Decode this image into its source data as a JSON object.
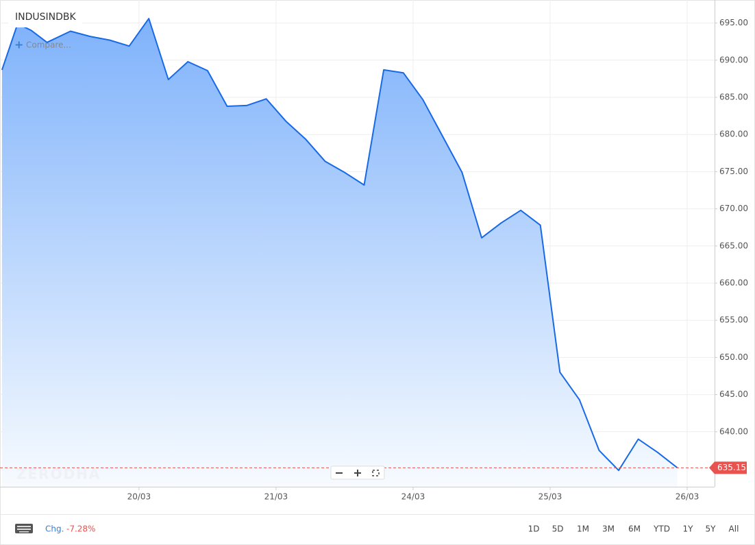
{
  "chart_data": {
    "type": "area",
    "title": "INDUSINDBK",
    "color": "#1769e6",
    "x": [
      -0.5,
      0.3,
      1,
      1.8,
      3,
      4,
      5,
      6,
      7,
      8,
      9,
      10,
      11,
      12,
      13,
      14,
      15,
      16,
      17,
      18,
      19,
      20,
      21,
      22,
      23,
      24,
      25,
      26,
      27,
      28,
      29,
      30,
      31,
      32,
      33,
      34
    ],
    "values": [
      688.7,
      694.9,
      694.0,
      692.4,
      693.9,
      693.2,
      692.7,
      691.9,
      695.6,
      687.4,
      689.8,
      688.6,
      683.8,
      683.9,
      684.8,
      681.8,
      679.4,
      676.4,
      674.9,
      673.2,
      688.7,
      688.3,
      684.7,
      679.8,
      674.9,
      666.1,
      668.1,
      669.8,
      667.8,
      648.0,
      644.3,
      637.5,
      634.8,
      639.0,
      637.2,
      635.15
    ],
    "xlim": [
      -0.6,
      35.9
    ],
    "xticks": [
      {
        "value": 6.5,
        "label": "20/03"
      },
      {
        "value": 13.5,
        "label": "21/03"
      },
      {
        "value": 20.5,
        "label": "24/03"
      },
      {
        "value": 27.5,
        "label": "25/03"
      },
      {
        "value": 34.5,
        "label": "26/03"
      }
    ],
    "ylim": [
      632.6,
      698.1
    ],
    "yticks": [
      {
        "value": 640,
        "label": "640.00"
      },
      {
        "value": 645,
        "label": "645.00"
      },
      {
        "value": 650,
        "label": "650.00"
      },
      {
        "value": 655,
        "label": "655.00"
      },
      {
        "value": 660,
        "label": "660.00"
      },
      {
        "value": 665,
        "label": "665.00"
      },
      {
        "value": 670,
        "label": "670.00"
      },
      {
        "value": 675,
        "label": "675.00"
      },
      {
        "value": 680,
        "label": "680.00"
      },
      {
        "value": 685,
        "label": "685.00"
      },
      {
        "value": 690,
        "label": "690.00"
      },
      {
        "value": 695,
        "label": "695.00"
      }
    ],
    "grid": true,
    "last_price": 635.15,
    "last_price_color": "#e8524f"
  },
  "ui": {
    "compare": "Compare...",
    "watermark": "ZERODHA",
    "change_label": "Chg.",
    "change_value": "-7.28%",
    "ranges": [
      "1D",
      "5D",
      "1M",
      "3M",
      "6M",
      "YTD",
      "1Y",
      "5Y",
      "All"
    ]
  }
}
